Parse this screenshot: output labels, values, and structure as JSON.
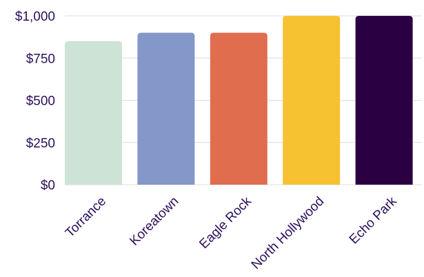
{
  "chart_data": {
    "type": "bar",
    "title": "",
    "xlabel": "",
    "ylabel": "",
    "categories": [
      "Torrance",
      "Koreatown",
      "Eagle Rock",
      "North Hollywood",
      "Echo Park"
    ],
    "values": [
      850,
      900,
      900,
      1000,
      1000
    ],
    "colors": [
      "#cce3d6",
      "#8497c9",
      "#e06e4e",
      "#f6c232",
      "#2b0042"
    ],
    "ylim": [
      0,
      1000
    ],
    "yticks": [
      0,
      250,
      500,
      750,
      1000
    ],
    "ytick_labels": [
      "$0",
      "$250",
      "$500",
      "$750",
      "$1,000"
    ],
    "grid": true,
    "legend": "none",
    "text_color": "#2b0f5c",
    "grid_color": "#dcdcdc"
  }
}
